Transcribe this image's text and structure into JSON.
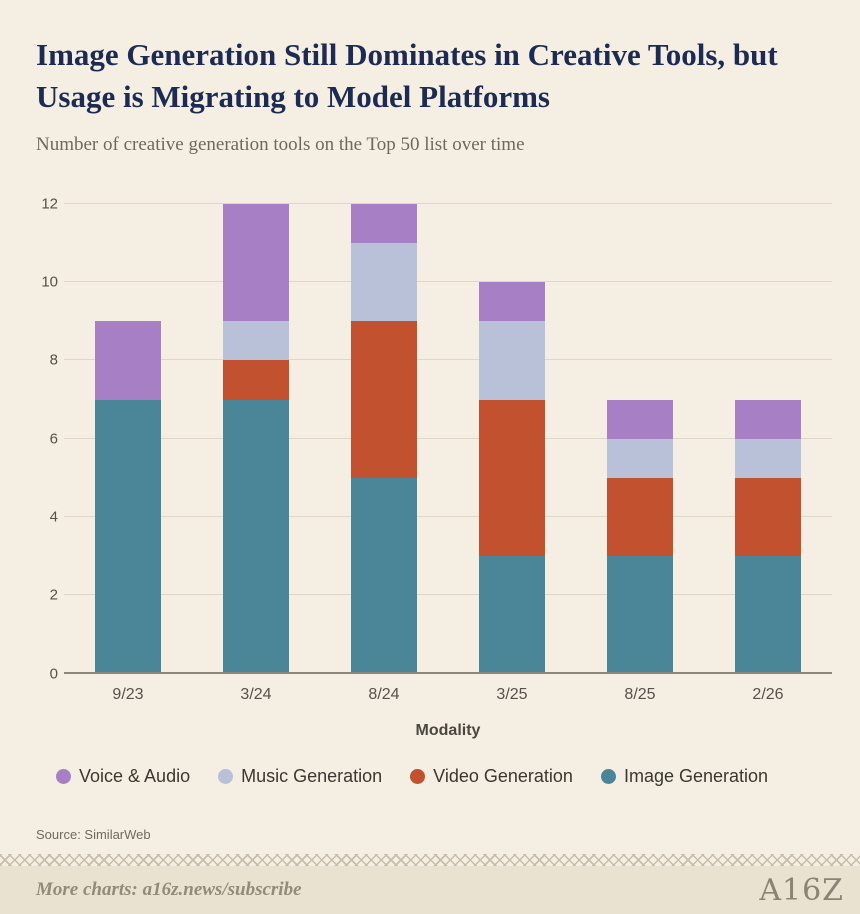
{
  "header": {
    "title": "Image Generation Still Dominates in Creative Tools, but Usage is Migrating to Model Platforms",
    "subtitle": "Number of creative generation tools on the Top 50 list over time"
  },
  "chart_data": {
    "type": "bar",
    "stacked": true,
    "title": "Image Generation Still Dominates in Creative Tools, but Usage is Migrating to Model Platforms",
    "subtitle": "Number of creative generation tools on the Top 50 list over time",
    "xlabel": "Modality",
    "ylabel": "",
    "ylim": [
      0,
      12
    ],
    "yticks": [
      0,
      2,
      4,
      6,
      8,
      10,
      12
    ],
    "grid": true,
    "legend_position": "bottom",
    "categories": [
      "9/23",
      "3/24",
      "8/24",
      "3/25",
      "8/25",
      "2/26"
    ],
    "series": [
      {
        "name": "Image Generation",
        "color": "#4b8698",
        "values": [
          7,
          7,
          5,
          3,
          3,
          3
        ]
      },
      {
        "name": "Video Generation",
        "color": "#c2522f",
        "values": [
          0,
          1,
          4,
          4,
          2,
          2
        ]
      },
      {
        "name": "Music Generation",
        "color": "#b8c1d8",
        "values": [
          0,
          1,
          2,
          2,
          1,
          1
        ]
      },
      {
        "name": "Voice & Audio",
        "color": "#a77fc4",
        "values": [
          2,
          3,
          1,
          1,
          1,
          1
        ]
      }
    ],
    "legend": [
      "Voice & Audio",
      "Music Generation",
      "Video Generation",
      "Image Generation"
    ]
  },
  "source": {
    "label": "Source: SimilarWeb"
  },
  "footer": {
    "more_charts": "More charts: a16z.news/subscribe",
    "logo": "A16Z"
  },
  "colors": {
    "background": "#f4eee3",
    "footer_band": "#eae2d1",
    "title": "#1d2b53",
    "gridline": "#ded7c6",
    "baseline": "#8b8577"
  }
}
